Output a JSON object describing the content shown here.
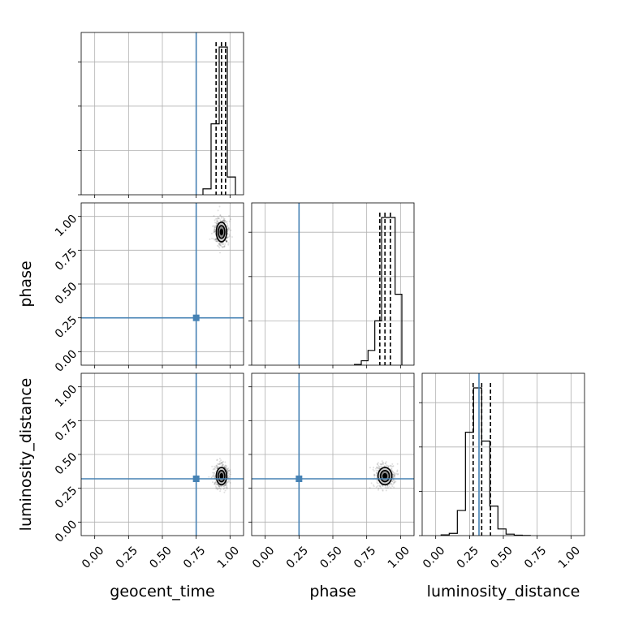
{
  "chart_data": {
    "type": "corner",
    "parameters": [
      "geocent_time",
      "phase",
      "luminosity_distance"
    ],
    "axis_labels": {
      "x": [
        "geocent_time",
        "phase",
        "luminosity_distance"
      ],
      "y": [
        "phase",
        "luminosity_distance"
      ]
    },
    "xlim": [
      -0.1,
      1.1
    ],
    "ylim": [
      -0.1,
      1.1
    ],
    "tick_labels": [
      "0.00",
      "0.25",
      "0.50",
      "0.75",
      "1.00"
    ],
    "tick_values": [
      0,
      0.25,
      0.5,
      0.75,
      1.0
    ],
    "grid": true,
    "truths": {
      "geocent_time": 0.75,
      "phase": 0.25,
      "luminosity_distance": 0.32
    },
    "marginals": [
      {
        "parameter": "geocent_time",
        "bin_edges": [
          0.8,
          0.86,
          0.92,
          0.98,
          1.04
        ],
        "counts": [
          0.04,
          0.48,
          1.0,
          0.12
        ],
        "quantiles": [
          0.897,
          0.937,
          0.967
        ]
      },
      {
        "parameter": "phase",
        "bin_edges": [
          0.66,
          0.71,
          0.76,
          0.81,
          0.86,
          0.91,
          0.96,
          1.01
        ],
        "counts": [
          0.005,
          0.03,
          0.1,
          0.3,
          1.0,
          1.0,
          0.48
        ],
        "quantiles": [
          0.847,
          0.885,
          0.925
        ]
      },
      {
        "parameter": "luminosity_distance",
        "bin_edges": [
          0.04,
          0.1,
          0.16,
          0.22,
          0.28,
          0.34,
          0.4,
          0.46,
          0.52,
          0.58,
          0.64,
          0.7
        ],
        "counts": [
          0.005,
          0.015,
          0.17,
          0.7,
          1.0,
          0.64,
          0.2,
          0.045,
          0.01,
          0.003,
          0.001
        ],
        "quantiles": [
          0.277,
          0.34,
          0.405
        ]
      }
    ],
    "joint": [
      {
        "x": "geocent_time",
        "y": "phase",
        "center": [
          0.937,
          0.885
        ],
        "spread": [
          0.045,
          0.085
        ]
      },
      {
        "x": "geocent_time",
        "y": "luminosity_distance",
        "center": [
          0.937,
          0.34
        ],
        "spread": [
          0.045,
          0.075
        ]
      },
      {
        "x": "phase",
        "y": "luminosity_distance",
        "center": [
          0.885,
          0.34
        ],
        "spread": [
          0.06,
          0.075
        ]
      }
    ],
    "colors": {
      "truth": "#4682b4",
      "histogram": "#000000",
      "quantile": "#000000",
      "grid": "#b0b0b0",
      "scatter": "#000000"
    }
  }
}
